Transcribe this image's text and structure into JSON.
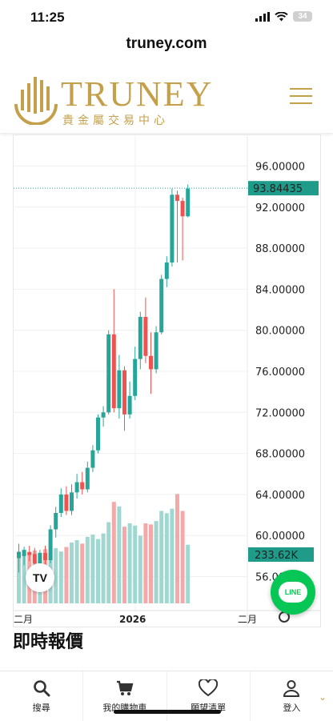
{
  "status": {
    "time": "11:25",
    "battery": "34"
  },
  "browser": {
    "url": "truney.com"
  },
  "header": {
    "logo_word": "TRUNEY",
    "logo_sub": "貴金屬交易中心"
  },
  "chart_data": {
    "type": "candlestick",
    "yticks": [
      "96.00000",
      "92.00000",
      "88.00000",
      "84.00000",
      "80.00000",
      "76.00000",
      "72.00000",
      "68.00000",
      "64.00000",
      "60.00000",
      "56.00000"
    ],
    "ylim": [
      53,
      99
    ],
    "last_price_label": "93.84435",
    "last_price": 93.84,
    "volume_label": "233.62K",
    "xticks": [
      "二月",
      "2026",
      "二月"
    ],
    "colors": {
      "up": "#26a69a",
      "down": "#ef5350",
      "up_vol": "#9fd7d1",
      "down_vol": "#f4a9a8"
    },
    "candles": [
      {
        "o": 57.8,
        "h": 59.2,
        "l": 56.4,
        "c": 58.4
      },
      {
        "o": 58.0,
        "h": 58.9,
        "l": 57.1,
        "c": 58.6
      },
      {
        "o": 58.4,
        "h": 59.0,
        "l": 57.5,
        "c": 58.1
      },
      {
        "o": 58.2,
        "h": 58.8,
        "l": 56.9,
        "c": 57.3
      },
      {
        "o": 57.3,
        "h": 58.6,
        "l": 56.8,
        "c": 58.3
      },
      {
        "o": 58.3,
        "h": 59.0,
        "l": 57.0,
        "c": 57.6
      },
      {
        "o": 57.6,
        "h": 61.0,
        "l": 57.3,
        "c": 60.6
      },
      {
        "o": 60.6,
        "h": 62.8,
        "l": 59.8,
        "c": 62.2
      },
      {
        "o": 62.2,
        "h": 64.6,
        "l": 61.8,
        "c": 64.0
      },
      {
        "o": 64.0,
        "h": 64.8,
        "l": 62.0,
        "c": 62.4
      },
      {
        "o": 62.4,
        "h": 65.0,
        "l": 62.0,
        "c": 64.2
      },
      {
        "o": 64.2,
        "h": 66.0,
        "l": 63.6,
        "c": 65.2
      },
      {
        "o": 65.2,
        "h": 66.2,
        "l": 64.0,
        "c": 64.5
      },
      {
        "o": 64.5,
        "h": 67.2,
        "l": 64.2,
        "c": 66.6
      },
      {
        "o": 66.6,
        "h": 68.8,
        "l": 66.2,
        "c": 68.3
      },
      {
        "o": 68.3,
        "h": 71.8,
        "l": 68.0,
        "c": 71.5
      },
      {
        "o": 71.5,
        "h": 72.6,
        "l": 70.6,
        "c": 72.0
      },
      {
        "o": 72.0,
        "h": 80.0,
        "l": 71.8,
        "c": 79.6
      },
      {
        "o": 79.6,
        "h": 84.0,
        "l": 72.0,
        "c": 72.4
      },
      {
        "o": 72.4,
        "h": 77.6,
        "l": 71.4,
        "c": 76.1
      },
      {
        "o": 76.1,
        "h": 76.5,
        "l": 70.2,
        "c": 71.8
      },
      {
        "o": 71.8,
        "h": 75.0,
        "l": 71.4,
        "c": 73.6
      },
      {
        "o": 73.6,
        "h": 78.4,
        "l": 73.2,
        "c": 77.2
      },
      {
        "o": 77.2,
        "h": 81.8,
        "l": 76.2,
        "c": 81.3
      },
      {
        "o": 81.3,
        "h": 83.2,
        "l": 76.8,
        "c": 77.5
      },
      {
        "o": 77.5,
        "h": 79.8,
        "l": 73.8,
        "c": 76.2
      },
      {
        "o": 76.2,
        "h": 80.4,
        "l": 75.8,
        "c": 79.8
      },
      {
        "o": 79.8,
        "h": 85.4,
        "l": 79.6,
        "c": 85.0
      },
      {
        "o": 85.0,
        "h": 87.2,
        "l": 84.2,
        "c": 86.6
      },
      {
        "o": 86.6,
        "h": 93.8,
        "l": 86.2,
        "c": 93.2
      },
      {
        "o": 93.2,
        "h": 93.6,
        "l": 86.6,
        "c": 92.6
      },
      {
        "o": 92.6,
        "h": 92.9,
        "l": 86.8,
        "c": 91.1
      },
      {
        "o": 91.1,
        "h": 94.2,
        "l": 91.0,
        "c": 93.8
      }
    ],
    "volumes": [
      46,
      44,
      43,
      47,
      45,
      48,
      44,
      49,
      46,
      50,
      54,
      56,
      53,
      59,
      61,
      57,
      62,
      72,
      90,
      86,
      68,
      71,
      69,
      60,
      71,
      70,
      73,
      82,
      80,
      84,
      97,
      82,
      52
    ],
    "volume_max": 110
  },
  "section": {
    "title": "即時報價"
  },
  "tabs": [
    {
      "label": "搜尋",
      "icon": "search-icon"
    },
    {
      "label": "我的購物車",
      "icon": "cart-icon"
    },
    {
      "label": "願望清單",
      "icon": "heart-icon"
    },
    {
      "label": "登入",
      "icon": "user-icon"
    }
  ],
  "line": {
    "label": "LINE"
  },
  "tv": {
    "label": "TV"
  }
}
